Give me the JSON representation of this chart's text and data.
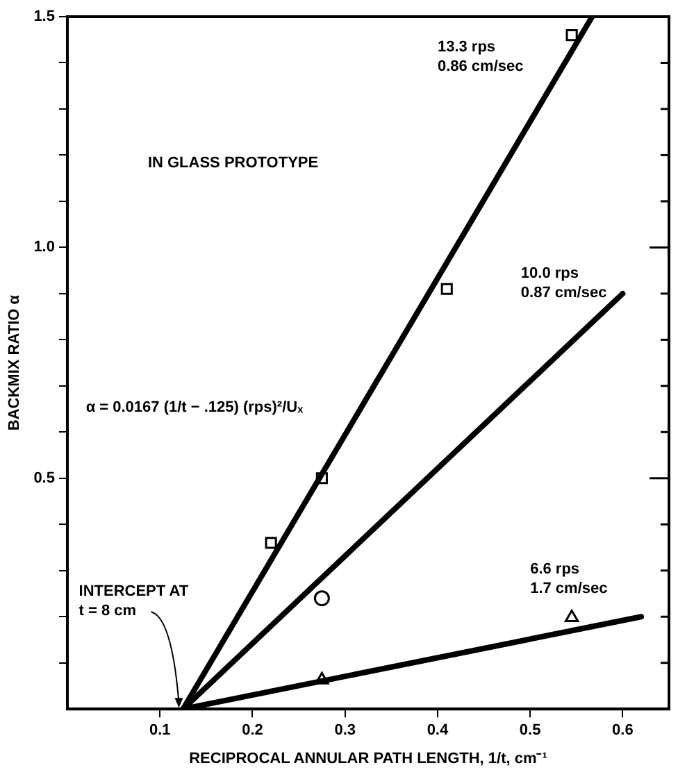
{
  "chart_data": {
    "type": "line",
    "xlabel": "RECIPROCAL ANNULAR PATH LENGTH, 1/t, cm⁻¹",
    "ylabel": "BACKMIX RATIO α",
    "xlim": [
      0,
      0.65
    ],
    "ylim": [
      0,
      1.5
    ],
    "xticks": [
      0.1,
      0.2,
      0.3,
      0.4,
      0.5,
      0.6
    ],
    "yticks": [
      {
        "value": 0.1,
        "label": null
      },
      {
        "value": 0.2,
        "label": null
      },
      {
        "value": 0.3,
        "label": null
      },
      {
        "value": 0.4,
        "label": null
      },
      0.5,
      {
        "value": 0.6,
        "label": null
      },
      {
        "value": 0.7,
        "label": null
      },
      {
        "value": 0.8,
        "label": null
      },
      {
        "value": 0.9,
        "label": null
      },
      {
        "value": 1.0,
        "label": "1.0"
      },
      {
        "value": 1.1,
        "label": null
      },
      {
        "value": 1.2,
        "label": null
      },
      {
        "value": 1.3,
        "label": null
      },
      {
        "value": 1.4,
        "label": null
      },
      1.5
    ],
    "grid": false,
    "legend": false,
    "series": [
      {
        "x": [
          0.125,
          0.567
        ],
        "values": [
          0,
          1.5
        ],
        "color": "#000000"
      },
      {
        "x": [
          0.125,
          0.6
        ],
        "values": [
          0,
          0.9
        ],
        "color": "#000000"
      },
      {
        "x": [
          0.125,
          0.62
        ],
        "values": [
          0,
          0.2
        ],
        "color": "#000000"
      },
      {
        "type": "scatter",
        "marker": "square",
        "x": [
          0.22,
          0.275,
          0.41,
          0.545
        ],
        "values": [
          0.36,
          0.5,
          0.91,
          1.46
        ],
        "color": "#000000"
      },
      {
        "type": "scatter",
        "marker": "circle",
        "x": [
          0.275
        ],
        "values": [
          0.24
        ],
        "color": "#000000"
      },
      {
        "type": "scatter",
        "marker": "triangle",
        "x": [
          0.275,
          0.545
        ],
        "values": [
          0.063,
          0.198
        ],
        "color": "#000000"
      }
    ],
    "annotations": [
      "13.3 rps\n0.86 cm/sec",
      "10.0 rps\n0.87 cm/sec",
      "6.6 rps\n1.7 cm/sec",
      {
        "text": "INTERCEPT AT\nt = 8 cm",
        "x": 0.125,
        "y": 0
      },
      "IN GLASS PROTOTYPE",
      "α = 0.0167 (1/t − .125) (rps)²/Uₓ"
    ]
  }
}
